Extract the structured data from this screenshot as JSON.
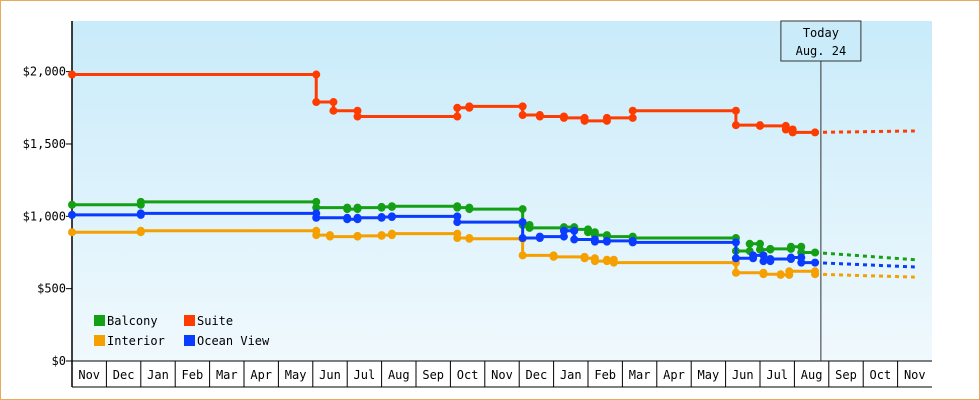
{
  "chart_data": {
    "type": "line",
    "title": "",
    "xlabel": "",
    "ylabel": "",
    "y_ticks": [
      "$0",
      "$500",
      "$1,000",
      "$1,500",
      "$2,000"
    ],
    "y_tick_values": [
      0,
      500,
      1000,
      1500,
      2000
    ],
    "ylim": [
      0,
      2350
    ],
    "months": [
      "Nov",
      "Dec",
      "Jan",
      "Feb",
      "Mar",
      "Apr",
      "May",
      "Jun",
      "Jul",
      "Aug",
      "Sep",
      "Oct",
      "Nov",
      "Dec",
      "Jan",
      "Feb",
      "Mar",
      "Apr",
      "May",
      "Jun",
      "Jul",
      "Aug",
      "Sep",
      "Oct",
      "Nov"
    ],
    "grid": "vertical month separators",
    "legend_position": "bottom-left",
    "today": {
      "line1": "Today",
      "line2": "Aug. 24",
      "x": 21.77
    },
    "series": [
      {
        "name": "Balcony",
        "color": "#14a014",
        "points": [
          [
            0,
            1080
          ],
          [
            2,
            1080
          ],
          [
            2,
            1100
          ],
          [
            7.1,
            1100
          ],
          [
            7.1,
            1060
          ],
          [
            8,
            1060
          ],
          [
            8,
            1050
          ],
          [
            8.3,
            1050
          ],
          [
            8.3,
            1060
          ],
          [
            9,
            1060
          ],
          [
            9,
            1065
          ],
          [
            9.3,
            1065
          ],
          [
            9.3,
            1070
          ],
          [
            11.2,
            1070
          ],
          [
            11.2,
            1060
          ],
          [
            11.55,
            1060
          ],
          [
            11.55,
            1050
          ],
          [
            13.1,
            1050
          ],
          [
            13.1,
            940
          ],
          [
            13.3,
            940
          ],
          [
            13.3,
            920
          ],
          [
            14.3,
            920
          ],
          [
            14.3,
            925
          ],
          [
            14.6,
            925
          ],
          [
            14.6,
            910
          ],
          [
            15,
            910
          ],
          [
            15,
            890
          ],
          [
            15.2,
            890
          ],
          [
            15.2,
            870
          ],
          [
            15.55,
            870
          ],
          [
            15.55,
            860
          ],
          [
            16.3,
            860
          ],
          [
            16.3,
            850
          ],
          [
            19.3,
            850
          ],
          [
            19.3,
            760
          ],
          [
            19.7,
            760
          ],
          [
            19.7,
            810
          ],
          [
            20,
            810
          ],
          [
            20,
            770
          ],
          [
            20.3,
            770
          ],
          [
            20.3,
            775
          ],
          [
            20.9,
            775
          ],
          [
            20.9,
            790
          ],
          [
            21.2,
            790
          ],
          [
            21.2,
            750
          ],
          [
            21.6,
            750
          ]
        ],
        "forecast": [
          [
            21.6,
            750
          ],
          [
            24.5,
            700
          ]
        ]
      },
      {
        "name": "Interior",
        "color": "#f5a000",
        "points": [
          [
            0,
            890
          ],
          [
            2,
            890
          ],
          [
            2,
            900
          ],
          [
            7.1,
            900
          ],
          [
            7.1,
            870
          ],
          [
            7.5,
            870
          ],
          [
            7.5,
            860
          ],
          [
            8.3,
            860
          ],
          [
            8.3,
            865
          ],
          [
            9,
            865
          ],
          [
            9,
            870
          ],
          [
            9.3,
            870
          ],
          [
            9.3,
            880
          ],
          [
            11.2,
            880
          ],
          [
            11.2,
            850
          ],
          [
            11.55,
            850
          ],
          [
            11.55,
            845
          ],
          [
            13.1,
            845
          ],
          [
            13.1,
            730
          ],
          [
            14,
            730
          ],
          [
            14,
            720
          ],
          [
            14.9,
            720
          ],
          [
            14.9,
            710
          ],
          [
            15.2,
            710
          ],
          [
            15.2,
            690
          ],
          [
            15.55,
            690
          ],
          [
            15.55,
            700
          ],
          [
            15.75,
            700
          ],
          [
            15.75,
            680
          ],
          [
            19.3,
            680
          ],
          [
            19.3,
            610
          ],
          [
            20.1,
            610
          ],
          [
            20.1,
            600
          ],
          [
            20.6,
            600
          ],
          [
            20.6,
            595
          ],
          [
            20.85,
            595
          ],
          [
            20.85,
            620
          ],
          [
            21.6,
            620
          ],
          [
            21.6,
            600
          ]
        ],
        "forecast": [
          [
            21.6,
            600
          ],
          [
            24.5,
            580
          ]
        ]
      },
      {
        "name": "Suite",
        "color": "#ff3c00",
        "points": [
          [
            0,
            1980
          ],
          [
            7.1,
            1980
          ],
          [
            7.1,
            1790
          ],
          [
            7.6,
            1790
          ],
          [
            7.6,
            1730
          ],
          [
            8.3,
            1730
          ],
          [
            8.3,
            1690
          ],
          [
            11.2,
            1690
          ],
          [
            11.2,
            1750
          ],
          [
            11.55,
            1750
          ],
          [
            11.55,
            1760
          ],
          [
            13.1,
            1760
          ],
          [
            13.1,
            1700
          ],
          [
            13.6,
            1700
          ],
          [
            13.6,
            1690
          ],
          [
            14.3,
            1690
          ],
          [
            14.3,
            1680
          ],
          [
            14.9,
            1680
          ],
          [
            14.9,
            1660
          ],
          [
            15.55,
            1660
          ],
          [
            15.55,
            1680
          ],
          [
            16.3,
            1680
          ],
          [
            16.3,
            1730
          ],
          [
            19.3,
            1730
          ],
          [
            19.3,
            1630
          ],
          [
            20,
            1630
          ],
          [
            20,
            1625
          ],
          [
            20.75,
            1625
          ],
          [
            20.75,
            1600
          ],
          [
            20.95,
            1600
          ],
          [
            20.95,
            1580
          ],
          [
            21.6,
            1580
          ]
        ],
        "forecast": [
          [
            21.6,
            1580
          ],
          [
            24.5,
            1590
          ]
        ]
      },
      {
        "name": "Ocean View",
        "color": "#0a3cff",
        "points": [
          [
            0,
            1010
          ],
          [
            2,
            1010
          ],
          [
            2,
            1020
          ],
          [
            7.1,
            1020
          ],
          [
            7.1,
            990
          ],
          [
            8,
            990
          ],
          [
            8,
            980
          ],
          [
            8.3,
            980
          ],
          [
            8.3,
            990
          ],
          [
            9,
            990
          ],
          [
            9,
            995
          ],
          [
            9.3,
            995
          ],
          [
            9.3,
            1000
          ],
          [
            11.2,
            1000
          ],
          [
            11.2,
            960
          ],
          [
            13.1,
            960
          ],
          [
            13.1,
            850
          ],
          [
            13.6,
            850
          ],
          [
            13.6,
            860
          ],
          [
            14.3,
            860
          ],
          [
            14.3,
            900
          ],
          [
            14.6,
            900
          ],
          [
            14.6,
            840
          ],
          [
            15.2,
            840
          ],
          [
            15.2,
            825
          ],
          [
            15.55,
            825
          ],
          [
            15.55,
            830
          ],
          [
            16.3,
            830
          ],
          [
            16.3,
            820
          ],
          [
            19.3,
            820
          ],
          [
            19.3,
            710
          ],
          [
            19.8,
            710
          ],
          [
            19.8,
            730
          ],
          [
            20.1,
            730
          ],
          [
            20.1,
            690
          ],
          [
            20.3,
            690
          ],
          [
            20.3,
            705
          ],
          [
            20.9,
            705
          ],
          [
            20.9,
            715
          ],
          [
            21.2,
            715
          ],
          [
            21.2,
            680
          ],
          [
            21.6,
            680
          ]
        ],
        "forecast": [
          [
            21.6,
            680
          ],
          [
            24.5,
            650
          ]
        ]
      }
    ]
  },
  "legend": [
    {
      "label": "Balcony",
      "color": "#14a014"
    },
    {
      "label": "Suite",
      "color": "#ff3c00"
    },
    {
      "label": "Interior",
      "color": "#f5a000"
    },
    {
      "label": "Ocean View",
      "color": "#0a3cff"
    }
  ]
}
